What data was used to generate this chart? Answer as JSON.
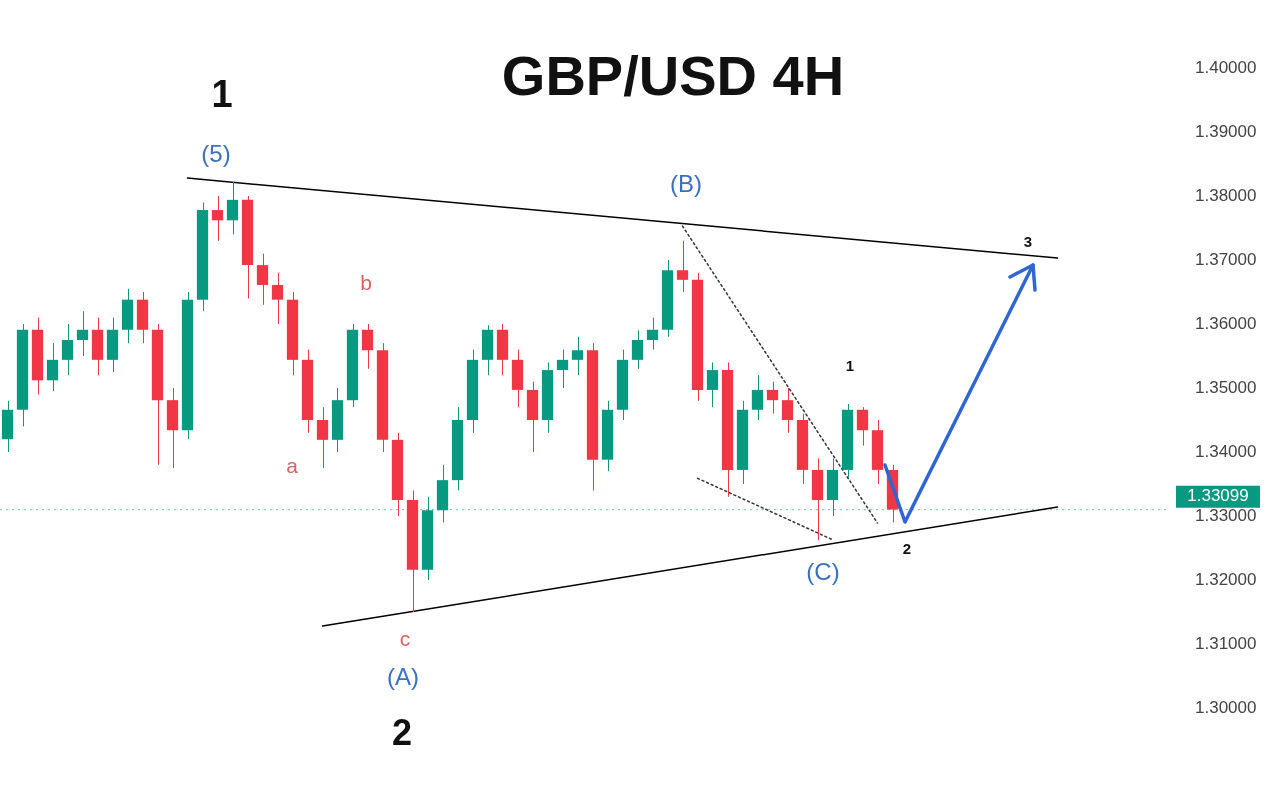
{
  "chart_data": {
    "type": "candlestick",
    "title": "GBP/USD 4H",
    "categories": [
      null,
      null,
      null,
      null,
      null,
      null,
      null,
      null,
      null,
      null,
      null,
      null,
      null,
      null,
      null,
      null,
      null,
      null,
      null,
      null,
      null,
      null,
      null,
      null,
      null,
      null,
      null,
      null,
      null,
      null,
      null,
      null,
      null,
      null,
      null,
      null,
      null,
      null,
      null,
      null,
      null,
      null,
      null,
      null,
      null,
      null,
      null,
      null,
      null,
      null,
      null,
      null,
      null,
      null,
      null,
      null,
      null,
      null,
      null,
      null,
      null,
      null,
      null,
      null,
      null,
      null,
      null,
      null,
      null,
      null,
      null,
      null,
      null,
      null,
      null,
      null,
      null,
      null
    ],
    "ohlc": [
      [
        1.342,
        1.348,
        1.34,
        1.3466
      ],
      [
        1.3466,
        1.36,
        1.344,
        1.3591
      ],
      [
        1.3591,
        1.361,
        1.349,
        1.3512
      ],
      [
        1.3512,
        1.357,
        1.3495,
        1.3544
      ],
      [
        1.3544,
        1.36,
        1.352,
        1.3575
      ],
      [
        1.3575,
        1.362,
        1.355,
        1.3591
      ],
      [
        1.3591,
        1.361,
        1.352,
        1.3544
      ],
      [
        1.3544,
        1.361,
        1.3525,
        1.3591
      ],
      [
        1.3591,
        1.3655,
        1.357,
        1.3638
      ],
      [
        1.3638,
        1.365,
        1.357,
        1.3591
      ],
      [
        1.3591,
        1.36,
        1.338,
        1.3481
      ],
      [
        1.3481,
        1.35,
        1.3375,
        1.3434
      ],
      [
        1.3434,
        1.365,
        1.342,
        1.3638
      ],
      [
        1.3638,
        1.379,
        1.362,
        1.3778
      ],
      [
        1.3778,
        1.38,
        1.373,
        1.3762
      ],
      [
        1.3762,
        1.3822,
        1.374,
        1.3794
      ],
      [
        1.3794,
        1.38,
        1.364,
        1.3692
      ],
      [
        1.3692,
        1.371,
        1.363,
        1.3661
      ],
      [
        1.3661,
        1.368,
        1.36,
        1.3638
      ],
      [
        1.3638,
        1.365,
        1.352,
        1.3544
      ],
      [
        1.3544,
        1.356,
        1.343,
        1.345
      ],
      [
        1.345,
        1.347,
        1.3375,
        1.3419
      ],
      [
        1.3419,
        1.35,
        1.34,
        1.3481
      ],
      [
        1.3481,
        1.36,
        1.347,
        1.3591
      ],
      [
        1.3591,
        1.36,
        1.353,
        1.3559
      ],
      [
        1.3559,
        1.357,
        1.34,
        1.3419
      ],
      [
        1.3419,
        1.343,
        1.33,
        1.3325
      ],
      [
        1.3325,
        1.334,
        1.315,
        1.3216
      ],
      [
        1.3216,
        1.333,
        1.32,
        1.3309
      ],
      [
        1.3309,
        1.338,
        1.329,
        1.3356
      ],
      [
        1.3356,
        1.347,
        1.334,
        1.345
      ],
      [
        1.345,
        1.356,
        1.343,
        1.3544
      ],
      [
        1.3544,
        1.3598,
        1.352,
        1.3591
      ],
      [
        1.3591,
        1.36,
        1.352,
        1.3544
      ],
      [
        1.3544,
        1.356,
        1.347,
        1.3497
      ],
      [
        1.3497,
        1.351,
        1.34,
        1.345
      ],
      [
        1.345,
        1.354,
        1.343,
        1.3528
      ],
      [
        1.3528,
        1.356,
        1.35,
        1.3544
      ],
      [
        1.3544,
        1.358,
        1.352,
        1.3559
      ],
      [
        1.3559,
        1.357,
        1.334,
        1.3388
      ],
      [
        1.3388,
        1.348,
        1.337,
        1.3466
      ],
      [
        1.3466,
        1.356,
        1.345,
        1.3544
      ],
      [
        1.3544,
        1.359,
        1.353,
        1.3575
      ],
      [
        1.3575,
        1.361,
        1.356,
        1.3591
      ],
      [
        1.3591,
        1.37,
        1.358,
        1.3684
      ],
      [
        1.3684,
        1.373,
        1.365,
        1.3669
      ],
      [
        1.3669,
        1.368,
        1.348,
        1.3497
      ],
      [
        1.3497,
        1.354,
        1.347,
        1.3528
      ],
      [
        1.3528,
        1.354,
        1.333,
        1.3372
      ],
      [
        1.3372,
        1.348,
        1.335,
        1.3466
      ],
      [
        1.3466,
        1.352,
        1.345,
        1.3497
      ],
      [
        1.3497,
        1.351,
        1.346,
        1.3481
      ],
      [
        1.3481,
        1.35,
        1.343,
        1.345
      ],
      [
        1.345,
        1.346,
        1.335,
        1.3372
      ],
      [
        1.3372,
        1.339,
        1.3262,
        1.3325
      ],
      [
        1.3325,
        1.339,
        1.33,
        1.3372
      ],
      [
        1.3372,
        1.3475,
        1.336,
        1.3466
      ],
      [
        1.3466,
        1.347,
        1.341,
        1.3434
      ],
      [
        1.3434,
        1.345,
        1.335,
        1.3372
      ],
      [
        1.3372,
        1.338,
        1.329,
        1.331
      ],
      null,
      null,
      null,
      null,
      null,
      null,
      null,
      null,
      null,
      null,
      null,
      null,
      null,
      null,
      null,
      null,
      null,
      null
    ],
    "series": [
      {
        "type": "line",
        "color": "#000000",
        "line_style": "solid",
        "values": [
          null,
          null,
          null,
          null,
          null,
          null,
          null,
          null,
          null,
          null,
          null,
          null,
          1.3828,
          null,
          null,
          null,
          null,
          null,
          null,
          null,
          null,
          null,
          null,
          null,
          null,
          null,
          null,
          null,
          null,
          null,
          null,
          null,
          null,
          null,
          null,
          null,
          null,
          null,
          null,
          null,
          null,
          null,
          null,
          null,
          null,
          null,
          null,
          null,
          null,
          null,
          null,
          null,
          null,
          null,
          null,
          null,
          null,
          null,
          null,
          null,
          null,
          null,
          null,
          null,
          null,
          null,
          null,
          null,
          null,
          null,
          1.3703,
          null,
          null,
          null,
          null,
          null,
          null,
          null
        ]
      },
      {
        "type": "line",
        "color": "#000000",
        "line_style": "solid",
        "values": [
          null,
          null,
          null,
          null,
          null,
          null,
          null,
          null,
          null,
          null,
          null,
          null,
          null,
          null,
          null,
          null,
          null,
          null,
          null,
          null,
          null,
          1.3128,
          null,
          null,
          null,
          null,
          null,
          null,
          null,
          null,
          null,
          null,
          null,
          null,
          null,
          null,
          null,
          null,
          null,
          null,
          null,
          null,
          null,
          null,
          null,
          null,
          null,
          null,
          null,
          null,
          null,
          null,
          null,
          null,
          null,
          null,
          null,
          null,
          null,
          null,
          null,
          null,
          null,
          null,
          null,
          null,
          null,
          null,
          null,
          null,
          1.3314,
          null,
          null,
          null,
          null,
          null,
          null,
          null
        ]
      },
      {
        "type": "line",
        "color": "#333333",
        "line_style": "dotted",
        "values": [
          null,
          null,
          null,
          null,
          null,
          null,
          null,
          null,
          null,
          null,
          null,
          null,
          null,
          null,
          null,
          null,
          null,
          null,
          null,
          null,
          null,
          null,
          null,
          null,
          null,
          null,
          null,
          null,
          null,
          null,
          null,
          null,
          null,
          null,
          null,
          null,
          null,
          null,
          null,
          null,
          null,
          null,
          null,
          null,
          null,
          1.3753,
          null,
          null,
          null,
          null,
          null,
          null,
          null,
          null,
          null,
          null,
          null,
          null,
          1.3289,
          null,
          null,
          null,
          null,
          null,
          null,
          null,
          null,
          null,
          null,
          null,
          null,
          null,
          null,
          null,
          null,
          null,
          null,
          null
        ]
      },
      {
        "type": "line",
        "color": "#333333",
        "line_style": "dotted",
        "values": [
          null,
          null,
          null,
          null,
          null,
          null,
          null,
          null,
          null,
          null,
          null,
          null,
          null,
          null,
          null,
          null,
          null,
          null,
          null,
          null,
          null,
          null,
          null,
          null,
          null,
          null,
          null,
          null,
          null,
          null,
          null,
          null,
          null,
          null,
          null,
          null,
          null,
          null,
          null,
          null,
          null,
          null,
          null,
          null,
          null,
          null,
          1.3359,
          null,
          null,
          null,
          null,
          null,
          null,
          null,
          null,
          1.3263,
          null,
          null,
          null,
          null,
          null,
          null,
          null,
          null,
          null,
          null,
          null,
          null,
          null,
          null,
          null,
          null,
          null,
          null,
          null,
          null,
          null,
          null
        ]
      }
    ],
    "ylim": [
      1.3,
      1.4
    ],
    "yticks": [
      {
        "value": 1.3,
        "label": "1.30000"
      },
      {
        "value": 1.31,
        "label": "1.31000"
      },
      {
        "value": 1.32,
        "label": "1.32000"
      },
      {
        "value": 1.33,
        "label": "1.33000"
      },
      {
        "value": 1.34,
        "label": "1.34000"
      },
      {
        "value": 1.35,
        "label": "1.35000"
      },
      {
        "value": 1.36,
        "label": "1.36000"
      },
      {
        "value": 1.37,
        "label": "1.37000"
      },
      {
        "value": 1.38,
        "label": "1.38000"
      },
      {
        "value": 1.39,
        "label": "1.39000"
      },
      {
        "value": 1.4,
        "label": "1.40000"
      }
    ],
    "ref_lines": [
      {
        "axis": "y",
        "value": 1.33099,
        "label": "1.33099",
        "color": "#089981"
      }
    ],
    "tick_labels": "y",
    "grid": false,
    "legend": false,
    "annotations": [
      "1",
      "(5)",
      "(B)",
      "b",
      "a",
      "c",
      "(A)",
      "2",
      "1",
      "(C)",
      "2",
      "3"
    ]
  }
}
